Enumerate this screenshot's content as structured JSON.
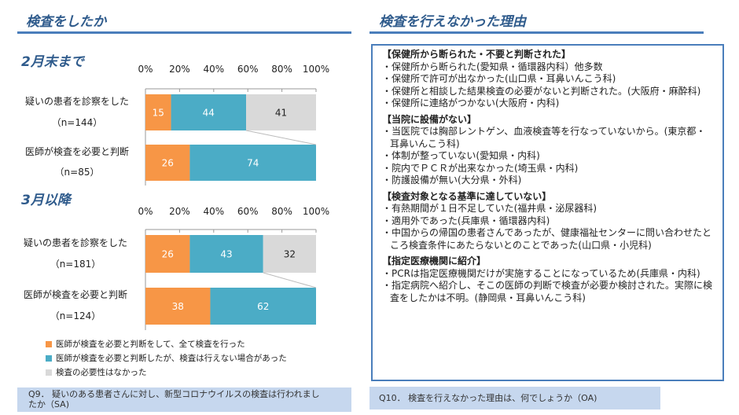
{
  "left": {
    "title": "検査をしたか",
    "question": "Q9． 疑いのある患者さんに対し、新型コロナウイルスの検査は行われましたか（SA)"
  },
  "right": {
    "title": "検査を行えなかった理由",
    "question": "Q10． 検査を行えなかった理由は、何でしょうか（OA)",
    "groups": [
      {
        "heading": "【保健所から断られた・不要と判断された】",
        "items": [
          "・保健所から断られた(愛知県・循環器内科）他多数",
          "・保健所で許可が出なかった(山口県・耳鼻いんこう科)",
          "・保健所と相談した結果検査の必要がないと判断された。(大阪府・麻酔科)",
          "・保健所に連絡がつかない(大阪府・内科)"
        ]
      },
      {
        "heading": "【当院に設備がない】",
        "items": [
          "・当医院では胸部レントゲン、血液検査等を行なっていないから。(東京都・耳鼻いんこう科)",
          "・体制が整っていない(愛知県・内科)",
          "・院内でＰＣＲが出来なかった(埼玉県・内科)",
          "・防護設備が無い(大分県・外科)"
        ]
      },
      {
        "heading": "【検査対象となる基準に達していない】",
        "items": [
          "・有熱期間が１日不足していた(福井県・泌尿器科)",
          "・適用外であった(兵庫県・循環器内科)",
          "・中国からの帰国の患者さんであったが、健康福祉センターに問い合わせたところ検査条件にあたらないとのことであった(山口県・小児科)"
        ]
      },
      {
        "heading": "【指定医療機関に紹介】",
        "items": [
          "・PCRは指定医療機関だけが実施することになっているため(兵庫県・内科)",
          "・指定病院へ紹介し、そこの医師の判断で検査が必要か検討された。実際に検査をしたかは不明。(静岡県・耳鼻いんこう科)"
        ]
      }
    ]
  },
  "chart_data": [
    {
      "type": "bar",
      "stacked": true,
      "orientation": "horizontal",
      "title": "2月末まで",
      "xlim": [
        0,
        100
      ],
      "ticks": [
        "0%",
        "20%",
        "40%",
        "60%",
        "80%",
        "100%"
      ],
      "categories": [
        {
          "label": "疑いの患者を診察をした",
          "n": "（n=144）"
        },
        {
          "label": "医師が検査を必要と判断",
          "n": "（n=85）"
        }
      ],
      "series": [
        {
          "name": "医師が検査を必要と判断をして、全て検査を行った",
          "color": "#f79646",
          "values": [
            15,
            26
          ]
        },
        {
          "name": "医師が検査を必要と判断したが、検査は行えない場合があった",
          "color": "#4bacc6",
          "values": [
            44,
            74
          ]
        },
        {
          "name": "検査の必要性はなかった",
          "color": "#d9d9d9",
          "values": [
            41,
            null
          ]
        }
      ]
    },
    {
      "type": "bar",
      "stacked": true,
      "orientation": "horizontal",
      "title": "3月以降",
      "xlim": [
        0,
        100
      ],
      "ticks": [
        "0%",
        "20%",
        "40%",
        "60%",
        "80%",
        "100%"
      ],
      "categories": [
        {
          "label": "疑いの患者を診察をした",
          "n": "（n=181）"
        },
        {
          "label": "医師が検査を必要と判断",
          "n": "（n=124）"
        }
      ],
      "series": [
        {
          "name": "医師が検査を必要と判断をして、全て検査を行った",
          "color": "#f79646",
          "values": [
            26,
            38
          ]
        },
        {
          "name": "医師が検査を必要と判断したが、検査は行えない場合があった",
          "color": "#4bacc6",
          "values": [
            43,
            62
          ]
        },
        {
          "name": "検査の必要性はなかった",
          "color": "#d9d9d9",
          "values": [
            32,
            null
          ]
        }
      ]
    }
  ]
}
